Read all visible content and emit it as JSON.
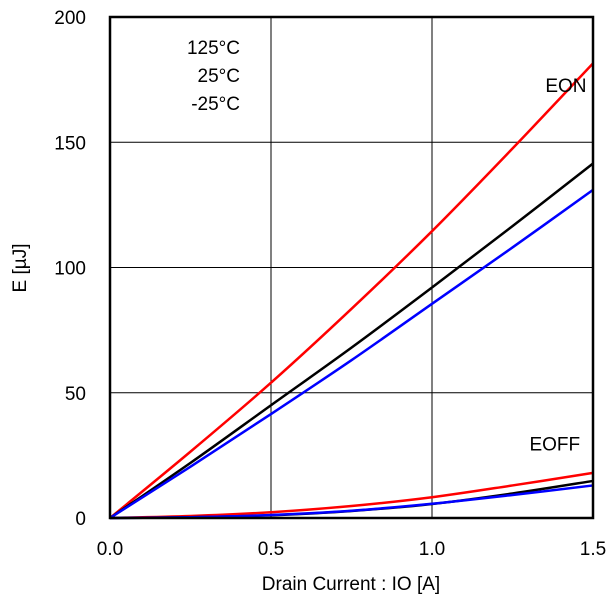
{
  "chart_data": {
    "type": "line",
    "xlabel": "Drain Current : IO [A]",
    "ylabel": "E [µJ]",
    "xlim": [
      0,
      1.5
    ],
    "ylim": [
      0,
      200
    ],
    "x_ticks": [
      "0.0",
      "0.5",
      "1.0",
      "1.5"
    ],
    "y_ticks": [
      "0",
      "50",
      "100",
      "150",
      "200"
    ],
    "grid": true,
    "legend_entries": [
      {
        "label": "125°C",
        "color": "#ff0000"
      },
      {
        "label": "25°C",
        "color": "#000000"
      },
      {
        "label": "-25°C",
        "color": "#0000ff"
      }
    ],
    "annotations": [
      {
        "text": "EON",
        "x": 1.48,
        "y": 170
      },
      {
        "text": "EOFF",
        "x": 1.46,
        "y": 27
      }
    ],
    "series": [
      {
        "group": "EON",
        "temp": "125°C",
        "color": "#ff0000",
        "x": [
          0,
          0.25,
          0.5,
          0.75,
          1.0,
          1.25,
          1.5
        ],
        "y": [
          0,
          26.5,
          54,
          83.5,
          114.5,
          147.5,
          181.5
        ]
      },
      {
        "group": "EON",
        "temp": "25°C",
        "color": "#000000",
        "x": [
          0,
          0.25,
          0.5,
          0.75,
          1.0,
          1.25,
          1.5
        ],
        "y": [
          0,
          22,
          45,
          68,
          92,
          116.5,
          141.5
        ]
      },
      {
        "group": "EON",
        "temp": "-25°C",
        "color": "#0000ff",
        "x": [
          0,
          0.25,
          0.5,
          0.75,
          1.0,
          1.25,
          1.5
        ],
        "y": [
          0,
          20.5,
          41.5,
          63,
          85.5,
          108,
          131
        ]
      },
      {
        "group": "EOFF",
        "temp": "125°C",
        "color": "#ff0000",
        "x": [
          0,
          0.25,
          0.5,
          0.75,
          1.0,
          1.25,
          1.5
        ],
        "y": [
          0,
          0.8,
          2.3,
          4.8,
          8.3,
          13,
          18
        ]
      },
      {
        "group": "EOFF",
        "temp": "25°C",
        "color": "#000000",
        "x": [
          0,
          0.25,
          0.5,
          0.75,
          1.0,
          1.25,
          1.5
        ],
        "y": [
          0,
          0.3,
          1.1,
          2.8,
          5.6,
          9.8,
          14.8
        ]
      },
      {
        "group": "EOFF",
        "temp": "-25°C",
        "color": "#0000ff",
        "x": [
          0,
          0.25,
          0.5,
          0.75,
          1.0,
          1.25,
          1.5
        ],
        "y": [
          0,
          0.3,
          1.2,
          2.9,
          5.7,
          9.2,
          13
        ]
      }
    ]
  }
}
